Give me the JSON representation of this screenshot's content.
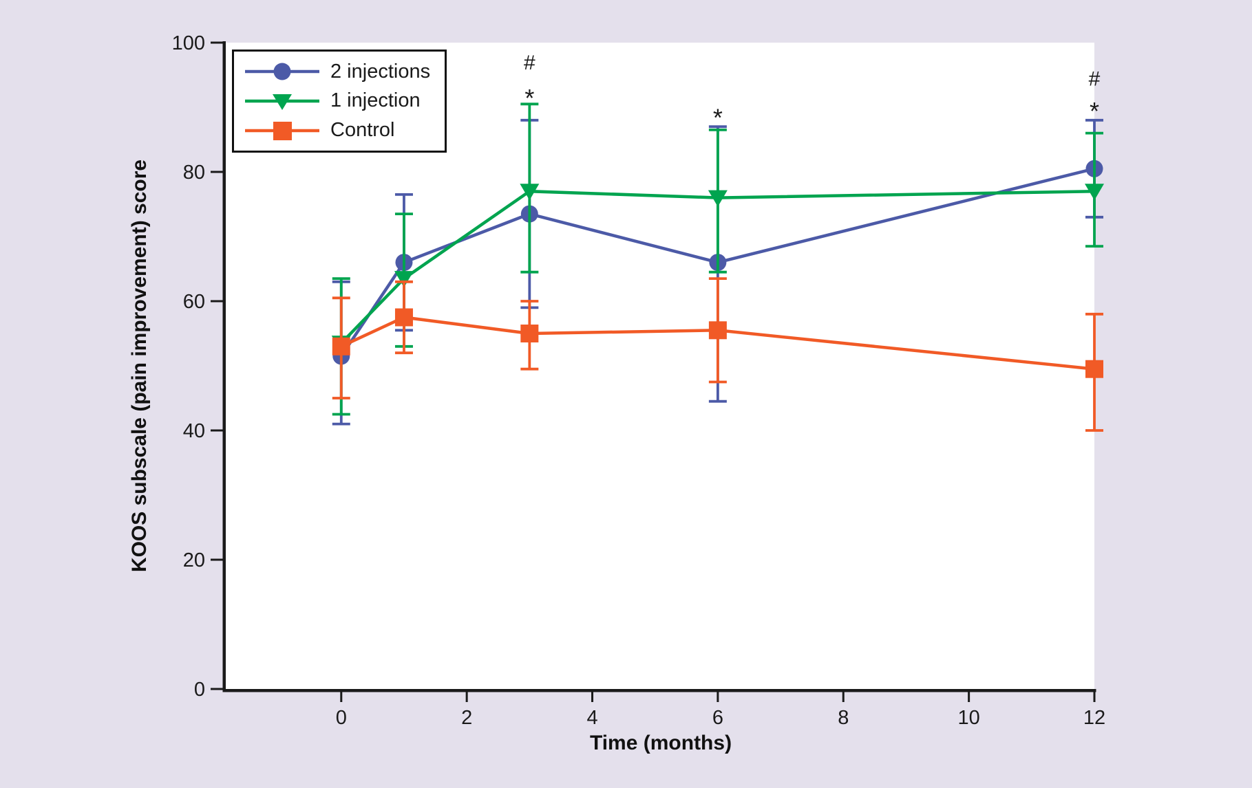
{
  "figure": {
    "background_color": "#e4e0ec",
    "plot_background_color": "#ffffff",
    "axis_color": "#1a1a1a"
  },
  "chart_data": {
    "type": "line",
    "title": "",
    "xlabel": "Time (months)",
    "ylabel": "KOOS subscale (pain improvement) score",
    "xlim": [
      -1.84,
      12
    ],
    "ylim": [
      0,
      100
    ],
    "xticks": [
      0,
      2,
      4,
      6,
      8,
      10,
      12
    ],
    "yticks": [
      0,
      20,
      40,
      60,
      80,
      100
    ],
    "grid": false,
    "legend_position": "top-left-inside",
    "error_bars": true,
    "x": [
      0,
      1,
      3,
      6,
      12
    ],
    "series": [
      {
        "name": "2 injections",
        "color": "#4c5aa7",
        "marker": "circle",
        "values": [
          51.5,
          66,
          73.5,
          66,
          80.5
        ],
        "err_high": [
          63,
          76.5,
          88,
          87,
          88
        ],
        "err_low": [
          41,
          55.5,
          59,
          44.5,
          73
        ]
      },
      {
        "name": "1 injection",
        "color": "#00a44f",
        "marker": "triangle-down",
        "values": [
          53.5,
          63.5,
          77,
          76,
          77
        ],
        "err_high": [
          63.5,
          73.5,
          90.5,
          86.5,
          86
        ],
        "err_low": [
          42.5,
          53,
          64.5,
          64.5,
          68.5
        ]
      },
      {
        "name": "Control",
        "color": "#f15a26",
        "marker": "square",
        "values": [
          53,
          57.5,
          55,
          55.5,
          49.5
        ],
        "err_high": [
          60.5,
          63,
          60,
          63.5,
          58
        ],
        "err_low": [
          45,
          52,
          49.5,
          47.5,
          40
        ]
      }
    ],
    "annotations": [
      {
        "x": 3,
        "y": 97,
        "text": "#"
      },
      {
        "x": 3,
        "y": 92,
        "text": "*"
      },
      {
        "x": 6,
        "y": 89,
        "text": "*"
      },
      {
        "x": 12,
        "y": 94.5,
        "text": "#"
      },
      {
        "x": 12,
        "y": 90,
        "text": "*"
      }
    ]
  }
}
